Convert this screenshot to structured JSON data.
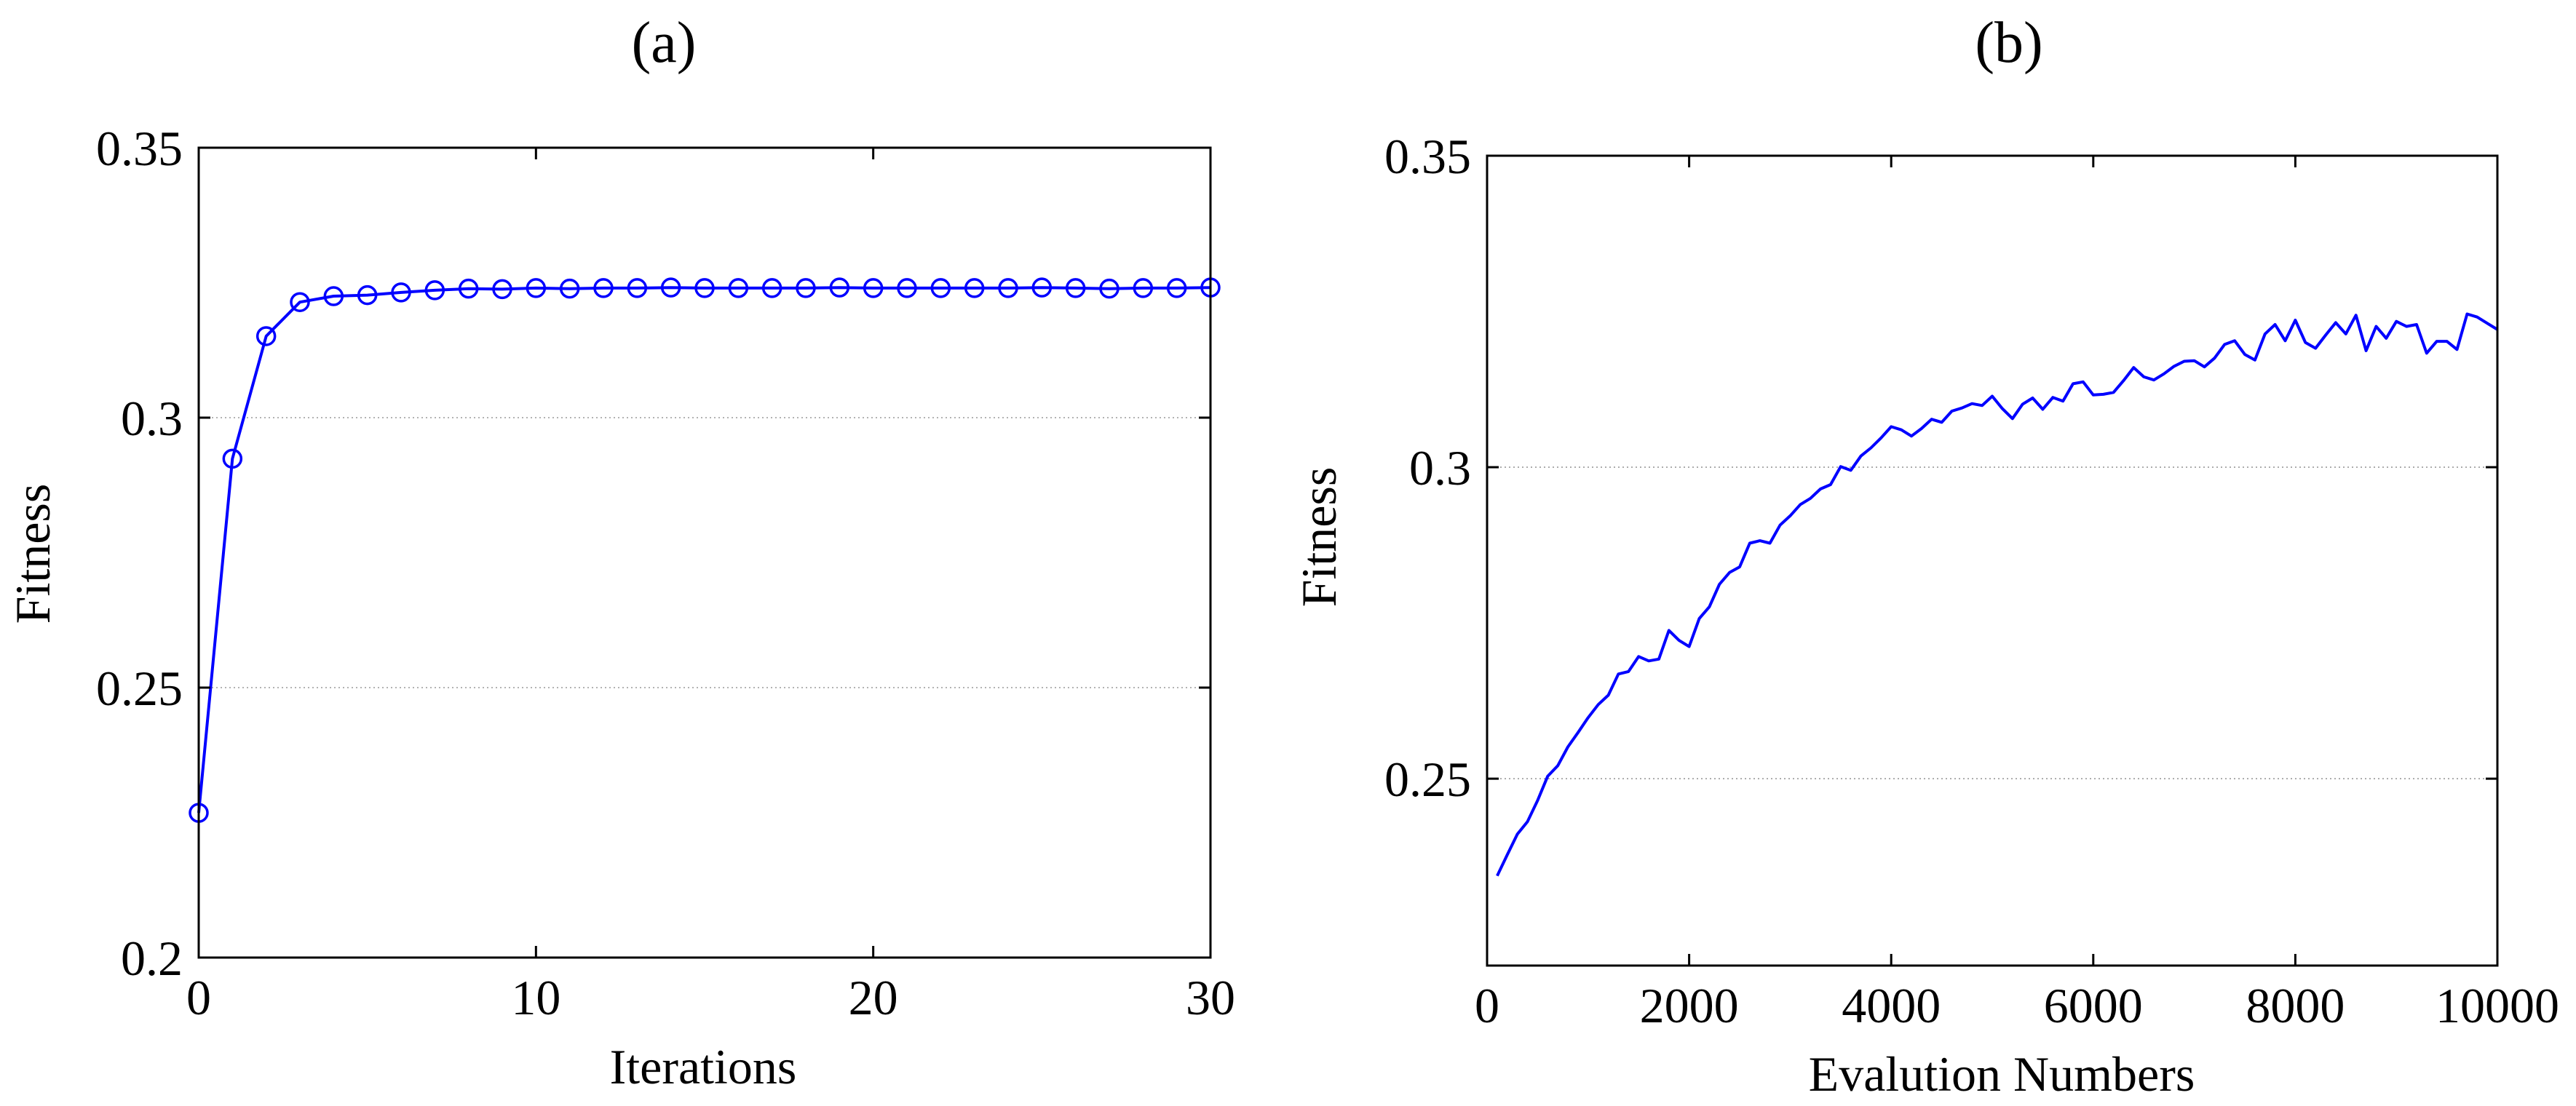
{
  "chart_data": [
    {
      "type": "line",
      "panel_label": "(a)",
      "xlabel": "Iterations",
      "ylabel": "Fitness",
      "xlim": [
        0,
        30
      ],
      "ylim": [
        0.2,
        0.35
      ],
      "x_ticks": [
        0,
        10,
        20,
        30
      ],
      "x_tick_labels": [
        "0",
        "10",
        "20",
        "30"
      ],
      "y_ticks": [
        0.2,
        0.25,
        0.3,
        0.35
      ],
      "y_tick_labels": [
        "0.2",
        "0.25",
        "0.3",
        "0.35"
      ],
      "grid": "horizontal dotted",
      "marker": "circle",
      "color": "#0000ff",
      "series": [
        {
          "x": [
            0,
            1,
            2,
            3,
            4,
            5,
            6,
            7,
            8,
            9,
            10,
            11,
            12,
            13,
            14,
            15,
            16,
            17,
            18,
            19,
            20,
            21,
            22,
            23,
            24,
            25,
            26,
            27,
            28,
            29,
            30
          ],
          "values": [
            0.2268,
            0.2924,
            0.3151,
            0.3214,
            0.3225,
            0.3227,
            0.3232,
            0.3236,
            0.3239,
            0.3238,
            0.324,
            0.3239,
            0.324,
            0.324,
            0.3241,
            0.324,
            0.324,
            0.324,
            0.324,
            0.3241,
            0.324,
            0.324,
            0.324,
            0.324,
            0.324,
            0.3241,
            0.324,
            0.3239,
            0.324,
            0.324,
            0.3241
          ]
        }
      ]
    },
    {
      "type": "line",
      "panel_label": "(b)",
      "xlabel": "Evalution Numbers",
      "ylabel": "Fitness",
      "xlim": [
        0,
        10000
      ],
      "ylim": [
        0.22,
        0.35
      ],
      "x_ticks": [
        0,
        2000,
        4000,
        6000,
        8000,
        10000
      ],
      "x_tick_labels": [
        "0",
        "2000",
        "4000",
        "6000",
        "8000",
        "10000"
      ],
      "y_ticks": [
        0.25,
        0.3,
        0.35
      ],
      "y_tick_labels": [
        "0.25",
        "0.3",
        "0.35"
      ],
      "grid": "horizontal dotted",
      "color": "#0000ff",
      "series": [
        {
          "x": [
            100,
            200,
            300,
            400,
            500,
            600,
            700,
            800,
            900,
            1000,
            1100,
            1200,
            1300,
            1400,
            1500,
            1600,
            1700,
            1800,
            1900,
            2000,
            2100,
            2200,
            2300,
            2400,
            2500,
            2600,
            2700,
            2800,
            2900,
            3000,
            3100,
            3200,
            3300,
            3400,
            3500,
            3600,
            3700,
            3800,
            3900,
            4000,
            4100,
            4200,
            4300,
            4400,
            4500,
            4600,
            4700,
            4800,
            4900,
            5000,
            5100,
            5200,
            5300,
            5400,
            5500,
            5600,
            5700,
            5800,
            5900,
            6000,
            6100,
            6200,
            6300,
            6400,
            6500,
            6600,
            6700,
            6800,
            6900,
            7000,
            7100,
            7200,
            7300,
            7400,
            7500,
            7600,
            7700,
            7800,
            7900,
            8000,
            8100,
            8200,
            8300,
            8400,
            8500,
            8600,
            8700,
            8800,
            8900,
            9000,
            9100,
            9200,
            9300,
            9400,
            9500,
            9600,
            9700,
            9800,
            9900,
            10000
          ],
          "values": [
            0.2344,
            0.2378,
            0.2411,
            0.2431,
            0.2465,
            0.2504,
            0.2521,
            0.2551,
            0.2574,
            0.2598,
            0.2619,
            0.2634,
            0.2668,
            0.2672,
            0.2696,
            0.2689,
            0.2692,
            0.2738,
            0.2722,
            0.2712,
            0.2757,
            0.2776,
            0.2812,
            0.2831,
            0.284,
            0.2878,
            0.2882,
            0.2878,
            0.2907,
            0.2922,
            0.294,
            0.295,
            0.2965,
            0.2972,
            0.3001,
            0.2995,
            0.3018,
            0.3031,
            0.3047,
            0.3065,
            0.306,
            0.305,
            0.3062,
            0.3077,
            0.3072,
            0.309,
            0.3095,
            0.3102,
            0.3099,
            0.3114,
            0.3094,
            0.3078,
            0.3101,
            0.3111,
            0.3093,
            0.3112,
            0.3106,
            0.3134,
            0.3137,
            0.3116,
            0.3117,
            0.312,
            0.3139,
            0.316,
            0.3145,
            0.314,
            0.315,
            0.3162,
            0.317,
            0.3171,
            0.3161,
            0.3175,
            0.3197,
            0.3203,
            0.3181,
            0.3172,
            0.3214,
            0.3229,
            0.3203,
            0.3236,
            0.32,
            0.3191,
            0.3212,
            0.3232,
            0.3214,
            0.3244,
            0.3187,
            0.3226,
            0.3207,
            0.3234,
            0.3226,
            0.3229,
            0.3183,
            0.3202,
            0.3202,
            0.3189,
            0.3246,
            0.3241,
            0.3231,
            0.3221
          ]
        }
      ]
    }
  ]
}
